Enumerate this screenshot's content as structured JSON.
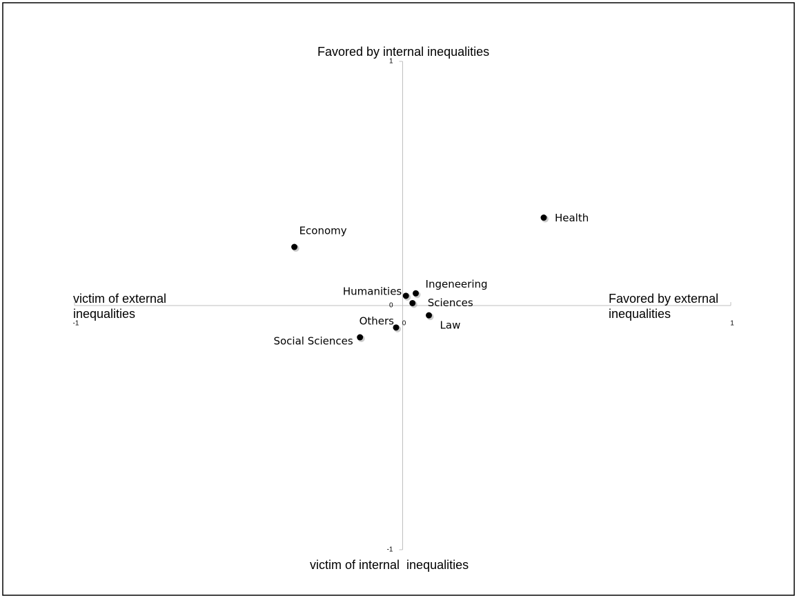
{
  "chart_data": {
    "type": "scatter",
    "y_label_top": "Favored by internal inequalities",
    "y_label_bottom": "victim of internal  inequalities",
    "x_label_left": "victim of external inequalities",
    "x_label_right": "Favored by external inequalities",
    "labels": [
      "Health",
      "Economy",
      "Humanities",
      "Ingeneering",
      "Sciences",
      "Law",
      "Others",
      "Social Sciences"
    ],
    "x": [
      0.43,
      -0.33,
      0.01,
      0.04,
      0.03,
      0.08,
      -0.02,
      -0.13
    ],
    "y": [
      0.36,
      0.24,
      0.04,
      0.05,
      0.01,
      -0.04,
      -0.09,
      -0.13
    ],
    "color": "#000000",
    "xlim": [
      -1,
      1
    ],
    "xticks": [
      -1,
      0,
      1
    ],
    "ylim": [
      -1,
      1
    ],
    "yticks": [
      -1,
      0,
      1
    ]
  }
}
